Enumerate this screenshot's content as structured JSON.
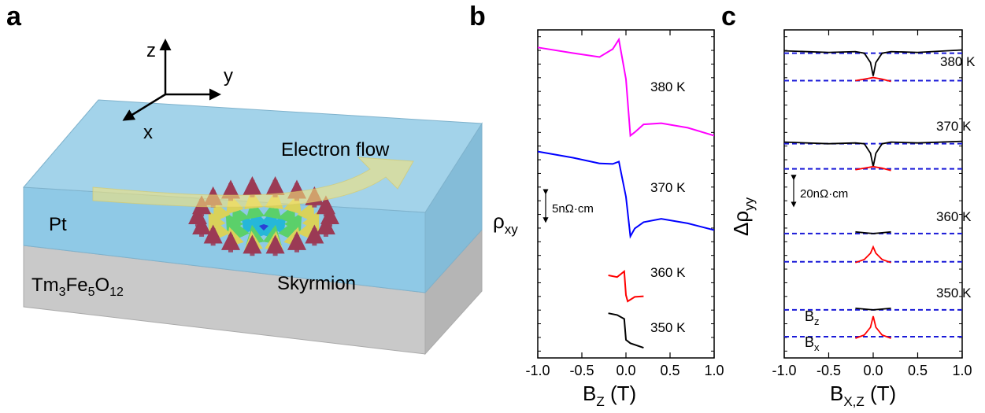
{
  "diagram": {
    "panel_labels": [
      "a",
      "b",
      "c"
    ],
    "axes": [
      "z",
      "y",
      "x"
    ],
    "flow_label": "Electron flow",
    "layer_top": "Pt",
    "layer_bottom": [
      "Tm",
      "3",
      "Fe",
      "5",
      "O",
      "12"
    ],
    "skyrmion_label": "Skyrmion"
  },
  "chart_data": [
    {
      "type": "line",
      "xlabel": [
        "B",
        "Z",
        " (T)"
      ],
      "ylabel": [
        "ρ",
        "xy"
      ],
      "xlim": [
        -1,
        1
      ],
      "ylim": [
        0,
        58
      ],
      "xticks": [
        {
          "value": -1,
          "label": "-1.0"
        },
        -0.5,
        {
          "value": 0,
          "label": "0.0"
        },
        0.5,
        {
          "value": 1,
          "label": "1.0"
        }
      ],
      "scale_bar": {
        "value": 5,
        "label": "5nΩ·cm"
      },
      "series": [
        {
          "name": "380 K",
          "color": "#ff00ff",
          "x": [
            -1,
            -0.6,
            -0.3,
            -0.15,
            -0.08,
            0,
            0.05,
            0.1,
            0.2,
            0.4,
            0.7,
            1
          ],
          "values": [
            54.9,
            53.9,
            53.2,
            54.6,
            56.3,
            49.3,
            39.3,
            39.9,
            41.3,
            41.5,
            40.7,
            39.3
          ]
        },
        {
          "name": "370 K",
          "color": "#0000ff",
          "x": [
            -1,
            -0.6,
            -0.3,
            -0.15,
            -0.08,
            0,
            0.05,
            0.1,
            0.2,
            0.4,
            0.7,
            1
          ],
          "values": [
            36.5,
            35.4,
            34.4,
            34.3,
            34.7,
            28.5,
            21.5,
            22.9,
            24.0,
            24.6,
            23.8,
            22.6
          ]
        },
        {
          "name": "360 K",
          "color": "#ff0000",
          "x": [
            -0.2,
            -0.1,
            -0.02,
            0,
            0.02,
            0.1,
            0.2
          ],
          "values": [
            14.6,
            14.3,
            15.3,
            11.1,
            10.0,
            10.8,
            10.9
          ]
        },
        {
          "name": "350 K",
          "color": "#000000",
          "x": [
            -0.2,
            -0.1,
            -0.02,
            0,
            0.05,
            0.2
          ],
          "values": [
            7.9,
            7.6,
            6.9,
            3.2,
            2.6,
            1.8
          ]
        }
      ]
    },
    {
      "type": "line",
      "xlabel": [
        "B",
        "X,Z",
        " (T)"
      ],
      "ylabel": [
        "Δρ",
        "yy"
      ],
      "xlim": [
        -1,
        1
      ],
      "ylim": [
        0,
        245
      ],
      "xticks": [
        {
          "value": -1,
          "label": "-1.0"
        },
        -0.5,
        {
          "value": 0,
          "label": "0.0"
        },
        0.5,
        {
          "value": 1,
          "label": "1.0"
        }
      ],
      "scale_bar": {
        "value": 20,
        "label": "20nΩ·cm"
      },
      "field_labels": [
        [
          "B",
          "z"
        ],
        [
          "B",
          "x"
        ]
      ],
      "groups": [
        {
          "name": "380 K",
          "series": [
            {
              "color": "#000000",
              "baseline": 227.6,
              "x": [
                -1,
                -0.5,
                -0.2,
                -0.1,
                -0.03,
                0,
                0.03,
                0.1,
                0.2,
                0.5,
                1
              ],
              "values": [
                229.4,
                228.2,
                228.8,
                227.6,
                220.6,
                210.6,
                220.6,
                227.6,
                228.8,
                228.2,
                230.0
              ]
            },
            {
              "color": "#ff0000",
              "baseline": 207.1,
              "x": [
                -0.2,
                -0.1,
                0,
                0.1,
                0.2
              ],
              "values": [
                207.1,
                208.2,
                209.4,
                208.2,
                206.5
              ]
            }
          ]
        },
        {
          "name": "370 K",
          "series": [
            {
              "color": "#000000",
              "baseline": 160.0,
              "x": [
                -1,
                -0.5,
                -0.2,
                -0.1,
                -0.03,
                0,
                0.03,
                0.1,
                0.2,
                0.5,
                1
              ],
              "values": [
                161.2,
                160.0,
                160.6,
                160.0,
                152.9,
                142.9,
                152.9,
                160.0,
                161.2,
                160.6,
                161.8
              ]
            },
            {
              "color": "#ff0000",
              "baseline": 141.2,
              "x": [
                -0.2,
                -0.1,
                0,
                0.1,
                0.2
              ],
              "values": [
                140.6,
                141.8,
                142.9,
                141.8,
                140.0
              ]
            }
          ]
        },
        {
          "name": "360 K",
          "series": [
            {
              "color": "#000000",
              "baseline": 92.9,
              "x": [
                -0.2,
                -0.1,
                0,
                0.1,
                0.2
              ],
              "values": [
                94.1,
                93.5,
                92.9,
                93.5,
                94.1
              ]
            },
            {
              "color": "#ff0000",
              "baseline": 71.8,
              "x": [
                -0.2,
                -0.1,
                -0.03,
                0,
                0.03,
                0.1,
                0.2
              ],
              "values": [
                71.2,
                73.5,
                78.2,
                82.9,
                78.2,
                73.5,
                71.2
              ]
            }
          ]
        },
        {
          "name": "350 K",
          "series": [
            {
              "color": "#000000",
              "baseline": 35.9,
              "x": [
                -0.2,
                -0.1,
                0,
                0.1,
                0.2
              ],
              "values": [
                37.1,
                36.5,
                35.9,
                36.5,
                37.1
              ]
            },
            {
              "color": "#ff0000",
              "baseline": 15.9,
              "x": [
                -0.2,
                -0.1,
                -0.03,
                0,
                0.03,
                0.1,
                0.2
              ],
              "values": [
                14.7,
                17.1,
                22.9,
                31.2,
                22.9,
                17.1,
                14.7
              ]
            }
          ]
        }
      ]
    }
  ]
}
